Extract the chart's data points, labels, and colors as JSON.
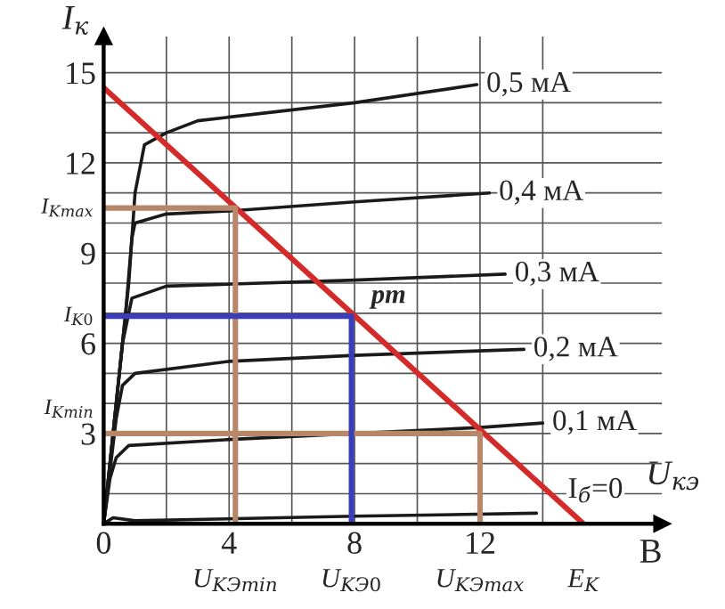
{
  "chart_data": {
    "type": "line",
    "xlabel": "U$_{кэ}$",
    "ylabel": "I$_{к}$",
    "xlim": [
      0,
      17.8
    ],
    "ylim": [
      0,
      16.2
    ],
    "xticks": [
      0,
      {
        "value": 2,
        "label": null
      },
      4,
      {
        "value": 6,
        "label": null
      },
      8,
      {
        "value": 10,
        "label": null
      },
      12,
      {
        "value": 14,
        "label": null
      }
    ],
    "yticks": [
      {
        "value": 1,
        "label": null
      },
      {
        "value": 2,
        "label": null
      },
      3,
      {
        "value": 4,
        "label": null
      },
      {
        "value": 5,
        "label": null
      },
      6,
      {
        "value": 7,
        "label": null
      },
      {
        "value": 8,
        "label": null
      },
      9,
      {
        "value": 10,
        "label": null
      },
      {
        "value": 11,
        "label": null
      },
      12,
      {
        "value": 13,
        "label": null
      },
      {
        "value": 14,
        "label": null
      },
      15
    ],
    "grid": true,
    "legend": false,
    "marker": "none",
    "line_style": "solid",
    "series": [
      {
        "name": "0,5 мA",
        "color": "#1a1a1a",
        "x": [
          0,
          0.8,
          1.0,
          1.3,
          2,
          3,
          8,
          11.9
        ],
        "values": [
          0,
          8,
          11,
          12.6,
          13.0,
          13.4,
          14.0,
          14.6
        ]
      },
      {
        "name": "0,4 мA",
        "color": "#1a1a1a",
        "x": [
          0,
          0.7,
          0.9,
          1.0,
          2,
          4,
          8,
          12.3
        ],
        "values": [
          0,
          7,
          9.5,
          10.0,
          10.3,
          10.4,
          10.7,
          11.0
        ]
      },
      {
        "name": "0,3 мA",
        "color": "#1a1a1a",
        "x": [
          0,
          0.6,
          0.9,
          2,
          8,
          12.8
        ],
        "values": [
          0,
          6,
          7.5,
          7.9,
          8.1,
          8.3
        ]
      },
      {
        "name": "0,2 мA",
        "color": "#1a1a1a",
        "x": [
          0,
          0.4,
          0.6,
          1.0,
          4,
          8,
          13.4
        ],
        "values": [
          0,
          3.5,
          4.6,
          5.0,
          5.4,
          5.6,
          5.8
        ]
      },
      {
        "name": "0,1 мA",
        "color": "#1a1a1a",
        "x": [
          0,
          0.2,
          0.4,
          0.8,
          4,
          8,
          12,
          14
        ],
        "values": [
          0,
          1.5,
          2.2,
          2.6,
          2.8,
          3.0,
          3.2,
          3.35
        ]
      },
      {
        "name": "I$_{б}$=0",
        "color": "#1a1a1a",
        "x": [
          0,
          0.3,
          1,
          8,
          13.8
        ],
        "values": [
          0,
          0.2,
          0.1,
          0.25,
          0.35
        ]
      },
      {
        "color": "#d42a2a",
        "x": [
          0,
          15.3
        ],
        "values": [
          14.5,
          0
        ]
      },
      {
        "color": "#b8876a",
        "x": [
          0,
          4.2,
          4.2
        ],
        "values": [
          10.5,
          10.5,
          0
        ]
      },
      {
        "color": "#b8876a",
        "x": [
          0,
          12,
          12
        ],
        "values": [
          3.0,
          3.0,
          0
        ]
      },
      {
        "color": "#3a3fb8",
        "x": [
          0,
          7.9,
          7.9
        ],
        "values": [
          6.9,
          6.9,
          0
        ]
      }
    ],
    "annotations": [
      {
        "text": "I$_{Kmax}$",
        "x": 0,
        "y": 10.5
      },
      {
        "text": "I$_{K0}$",
        "x": 0,
        "y": 6.9
      },
      {
        "text": "I$_{Kmin}$",
        "x": 0,
        "y": 3.0
      },
      {
        "text": "pm",
        "x": 7.9,
        "y": 6.9
      },
      {
        "text": "U$_{KЭmin}$",
        "x": 4.2,
        "y": 0
      },
      {
        "text": "U$_{KЭ0}$",
        "x": 7.9,
        "y": 0
      },
      {
        "text": "U$_{KЭmax}$",
        "x": 12,
        "y": 0
      },
      {
        "text": "E$_{K}$",
        "x": 15.3,
        "y": 0
      },
      "B"
    ]
  }
}
